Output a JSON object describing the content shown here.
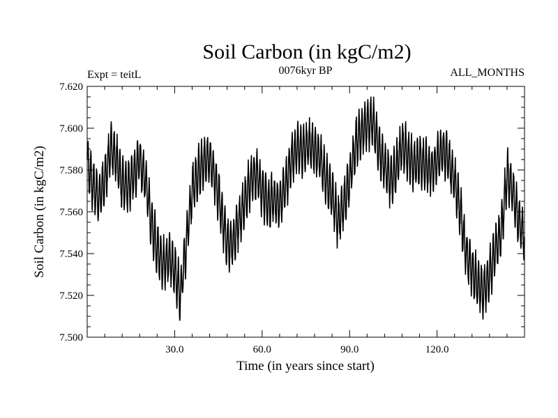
{
  "chart_data": {
    "type": "line",
    "title": "Soil Carbon (in kgC/m2)",
    "subtitle_left": "Expt = teitL",
    "subtitle_center": "0076kyr BP",
    "subtitle_right": "ALL_MONTHS",
    "xlabel": "Time (in years since start)",
    "ylabel": "Soil Carbon (in kgC/m2)",
    "xlim": [
      0,
      150
    ],
    "ylim": [
      7.5,
      7.62
    ],
    "x_ticks": [
      30,
      60,
      90,
      120
    ],
    "x_tick_labels": [
      "30.0",
      "60.0",
      "90.0",
      "120.0"
    ],
    "y_ticks": [
      7.5,
      7.52,
      7.54,
      7.56,
      7.58,
      7.6,
      7.62
    ],
    "y_tick_labels": [
      "7.500",
      "7.520",
      "7.540",
      "7.560",
      "7.580",
      "7.600",
      "7.620"
    ],
    "series": [
      {
        "name": "Soil Carbon",
        "color": "#000000",
        "annual_amplitude": 0.011,
        "x": [
          0,
          2,
          4,
          6,
          8,
          10,
          12,
          14,
          16,
          18,
          20,
          22,
          24,
          26,
          28,
          30,
          32,
          34,
          36,
          38,
          40,
          42,
          44,
          46,
          48,
          50,
          52,
          54,
          56,
          58,
          60,
          62,
          64,
          66,
          68,
          70,
          72,
          74,
          76,
          78,
          80,
          82,
          84,
          86,
          88,
          90,
          92,
          94,
          96,
          98,
          100,
          102,
          104,
          106,
          108,
          110,
          112,
          114,
          116,
          118,
          120,
          122,
          124,
          126,
          128,
          130,
          132,
          134,
          136,
          138,
          140,
          142,
          144,
          146,
          148,
          150
        ],
        "y": [
          7.585,
          7.572,
          7.566,
          7.575,
          7.59,
          7.585,
          7.573,
          7.572,
          7.578,
          7.585,
          7.575,
          7.555,
          7.542,
          7.535,
          7.538,
          7.532,
          7.52,
          7.545,
          7.57,
          7.578,
          7.584,
          7.586,
          7.575,
          7.56,
          7.545,
          7.545,
          7.555,
          7.565,
          7.575,
          7.578,
          7.57,
          7.564,
          7.566,
          7.564,
          7.572,
          7.585,
          7.59,
          7.59,
          7.592,
          7.59,
          7.585,
          7.575,
          7.568,
          7.555,
          7.563,
          7.575,
          7.592,
          7.598,
          7.602,
          7.603,
          7.59,
          7.582,
          7.575,
          7.58,
          7.592,
          7.587,
          7.582,
          7.585,
          7.582,
          7.58,
          7.584,
          7.59,
          7.585,
          7.575,
          7.56,
          7.54,
          7.532,
          7.525,
          7.522,
          7.53,
          7.542,
          7.55,
          7.578,
          7.57,
          7.555,
          7.548
        ]
      }
    ]
  }
}
